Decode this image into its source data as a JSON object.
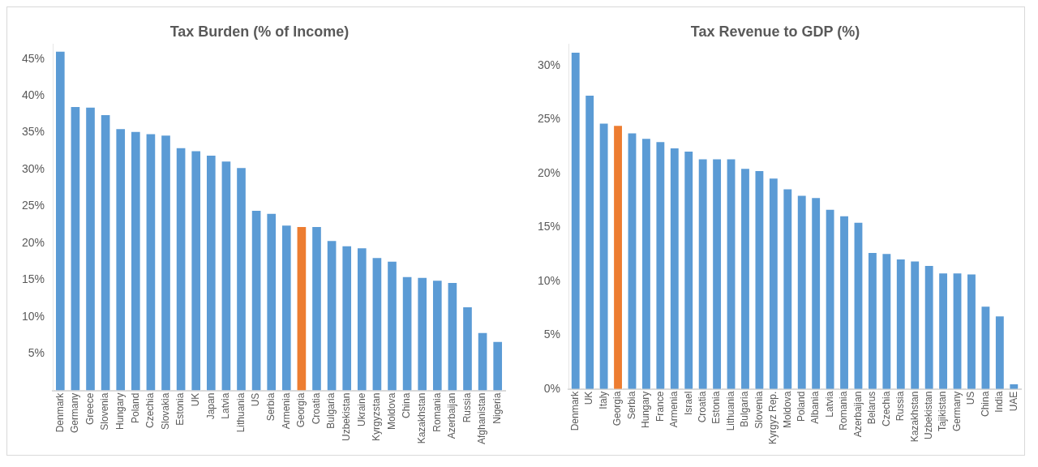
{
  "chart_data": [
    {
      "type": "bar",
      "title": "Tax Burden (% of Income)",
      "ylim": [
        0,
        47
      ],
      "categories": [
        "Denmark",
        "Germany",
        "Greece",
        "Slovenia",
        "Hungary",
        "Poland",
        "Czechia",
        "Slovakia",
        "Estonia",
        "UK",
        "Japan",
        "Latvia",
        "Lithuania",
        "US",
        "Serbia",
        "Armenia",
        "Georgia",
        "Croatia",
        "Bulgaria",
        "Uzbekistan",
        "Ukraine",
        "Kyrgyzstan",
        "Moldova",
        "China",
        "Kazakhstan",
        "Romania",
        "Azerbaijan",
        "Russia",
        "Afghanistan",
        "Nigeria"
      ],
      "values": [
        46.1,
        38.6,
        38.5,
        37.5,
        35.6,
        35.2,
        34.9,
        34.7,
        33.0,
        32.6,
        32.0,
        31.2,
        30.3,
        24.5,
        24.1,
        22.5,
        22.3,
        22.3,
        20.4,
        19.7,
        19.4,
        18.1,
        17.6,
        15.5,
        15.4,
        15.0,
        14.7,
        11.4,
        7.9,
        6.7
      ],
      "colors": [
        "#5b9bd5",
        "#5b9bd5",
        "#5b9bd5",
        "#5b9bd5",
        "#5b9bd5",
        "#5b9bd5",
        "#5b9bd5",
        "#5b9bd5",
        "#5b9bd5",
        "#5b9bd5",
        "#5b9bd5",
        "#5b9bd5",
        "#5b9bd5",
        "#5b9bd5",
        "#5b9bd5",
        "#5b9bd5",
        "#ed7d31",
        "#5b9bd5",
        "#5b9bd5",
        "#5b9bd5",
        "#5b9bd5",
        "#5b9bd5",
        "#5b9bd5",
        "#5b9bd5",
        "#5b9bd5",
        "#5b9bd5",
        "#5b9bd5",
        "#5b9bd5",
        "#5b9bd5",
        "#5b9bd5"
      ],
      "yticks": [
        {
          "value": 5,
          "label": "5%"
        },
        {
          "value": 10,
          "label": "10%"
        },
        {
          "value": 15,
          "label": "15%"
        },
        {
          "value": 20,
          "label": "20%"
        },
        {
          "value": 25,
          "label": "25%"
        },
        {
          "value": 30,
          "label": "30%"
        },
        {
          "value": 35,
          "label": "35%"
        },
        {
          "value": 40,
          "label": "40%"
        },
        {
          "value": 45,
          "label": "45%"
        }
      ],
      "grid": false,
      "legend": false
    },
    {
      "type": "bar",
      "title": "Tax Revenue to GDP (%)",
      "ylim": [
        0,
        32
      ],
      "categories": [
        "Denmark",
        "UK",
        "Italy",
        "Georgia",
        "Serbia",
        "Hungary",
        "France",
        "Armenia",
        "Israel",
        "Croatia",
        "Estonia",
        "Lithuania",
        "Bulgaria",
        "Slovenia",
        "Kyrgyz Rep.",
        "Moldova",
        "Poland",
        "Albania",
        "Latvia",
        "Romania",
        "Azerbaijan",
        "Belarus",
        "Czechia",
        "Russia",
        "Kazakhstan",
        "Uzbekistan",
        "Tajikistan",
        "Germany",
        "US",
        "China",
        "India",
        "UAE"
      ],
      "values": [
        31.3,
        27.3,
        24.7,
        24.5,
        23.8,
        23.3,
        23.0,
        22.4,
        22.1,
        21.4,
        21.4,
        21.4,
        20.5,
        20.3,
        19.6,
        18.6,
        18.0,
        17.8,
        16.7,
        16.1,
        15.5,
        12.7,
        12.6,
        12.1,
        11.9,
        11.5,
        10.8,
        10.8,
        10.7,
        7.7,
        6.8,
        0.5
      ],
      "colors": [
        "#5b9bd5",
        "#5b9bd5",
        "#5b9bd5",
        "#ed7d31",
        "#5b9bd5",
        "#5b9bd5",
        "#5b9bd5",
        "#5b9bd5",
        "#5b9bd5",
        "#5b9bd5",
        "#5b9bd5",
        "#5b9bd5",
        "#5b9bd5",
        "#5b9bd5",
        "#5b9bd5",
        "#5b9bd5",
        "#5b9bd5",
        "#5b9bd5",
        "#5b9bd5",
        "#5b9bd5",
        "#5b9bd5",
        "#5b9bd5",
        "#5b9bd5",
        "#5b9bd5",
        "#5b9bd5",
        "#5b9bd5",
        "#5b9bd5",
        "#5b9bd5",
        "#5b9bd5",
        "#5b9bd5",
        "#5b9bd5",
        "#5b9bd5"
      ],
      "yticks": [
        {
          "value": 0,
          "label": "0%"
        },
        {
          "value": 5,
          "label": "5%"
        },
        {
          "value": 10,
          "label": "10%"
        },
        {
          "value": 15,
          "label": "15%"
        },
        {
          "value": 20,
          "label": "20%"
        },
        {
          "value": 25,
          "label": "25%"
        },
        {
          "value": 30,
          "label": "30%"
        }
      ],
      "grid": false,
      "legend": false
    }
  ]
}
